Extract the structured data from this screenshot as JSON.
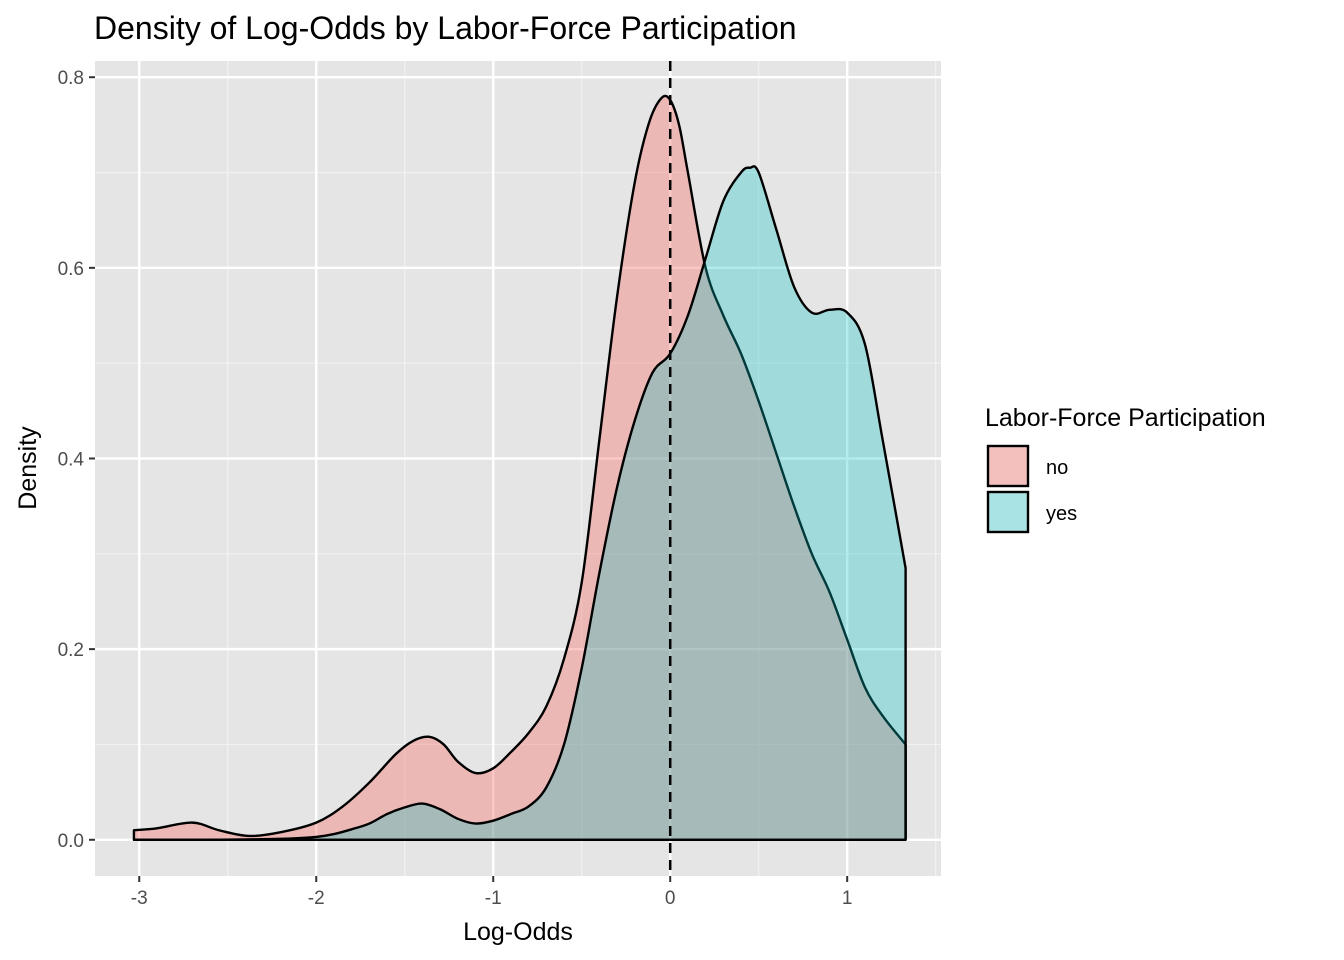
{
  "chart_data": {
    "type": "area",
    "title": "Density of Log-Odds by Labor-Force Participation",
    "xlabel": "Log-Odds",
    "ylabel": "Density",
    "xlim": [
      -3.25,
      1.53
    ],
    "ylim": [
      -0.038,
      0.817
    ],
    "x_ticks": [
      -3,
      -2,
      -1,
      0,
      1
    ],
    "x_tick_labels": [
      "-3",
      "-2",
      "-1",
      "0",
      "1"
    ],
    "y_ticks": [
      0.0,
      0.2,
      0.4,
      0.6,
      0.8
    ],
    "y_tick_labels": [
      "0.0",
      "0.2",
      "0.4",
      "0.6",
      "0.8"
    ],
    "grid": true,
    "background": "#e5e5e5",
    "reference_line": {
      "x": 0,
      "style": "dashed",
      "color": "#000000"
    },
    "legend": {
      "title": "Labor-Force Participation",
      "position": "right"
    },
    "series": [
      {
        "name": "no",
        "fill": "#f8766d",
        "fill_opacity": 0.4,
        "x": [
          -3.03,
          -2.9,
          -2.7,
          -2.55,
          -2.38,
          -2.2,
          -2.0,
          -1.85,
          -1.7,
          -1.55,
          -1.45,
          -1.36,
          -1.28,
          -1.2,
          -1.1,
          -1.0,
          -0.9,
          -0.8,
          -0.7,
          -0.6,
          -0.5,
          -0.4,
          -0.3,
          -0.2,
          -0.12,
          -0.05,
          0.0,
          0.05,
          0.1,
          0.2,
          0.3,
          0.4,
          0.5,
          0.6,
          0.7,
          0.8,
          0.9,
          1.0,
          1.1,
          1.2,
          1.33
        ],
        "y": [
          0.01,
          0.012,
          0.018,
          0.01,
          0.004,
          0.008,
          0.018,
          0.035,
          0.06,
          0.09,
          0.104,
          0.108,
          0.1,
          0.082,
          0.07,
          0.075,
          0.092,
          0.112,
          0.14,
          0.19,
          0.27,
          0.42,
          0.57,
          0.69,
          0.752,
          0.778,
          0.776,
          0.75,
          0.7,
          0.6,
          0.55,
          0.51,
          0.46,
          0.405,
          0.35,
          0.3,
          0.26,
          0.21,
          0.16,
          0.13,
          0.1
        ]
      },
      {
        "name": "yes",
        "fill": "#00bfc4",
        "fill_opacity": 0.3,
        "x": [
          -3.03,
          -2.6,
          -2.2,
          -2.0,
          -1.9,
          -1.8,
          -1.7,
          -1.6,
          -1.5,
          -1.4,
          -1.3,
          -1.2,
          -1.1,
          -1.0,
          -0.9,
          -0.8,
          -0.7,
          -0.6,
          -0.5,
          -0.4,
          -0.3,
          -0.2,
          -0.1,
          0.0,
          0.1,
          0.2,
          0.3,
          0.4,
          0.45,
          0.5,
          0.6,
          0.7,
          0.8,
          0.9,
          1.0,
          1.1,
          1.2,
          1.33
        ],
        "y": [
          0.0,
          0.0,
          0.001,
          0.003,
          0.006,
          0.011,
          0.017,
          0.027,
          0.034,
          0.038,
          0.032,
          0.022,
          0.017,
          0.02,
          0.027,
          0.035,
          0.055,
          0.1,
          0.18,
          0.28,
          0.37,
          0.44,
          0.49,
          0.51,
          0.55,
          0.61,
          0.67,
          0.7,
          0.705,
          0.7,
          0.64,
          0.58,
          0.553,
          0.556,
          0.553,
          0.52,
          0.42,
          0.285
        ]
      }
    ]
  }
}
